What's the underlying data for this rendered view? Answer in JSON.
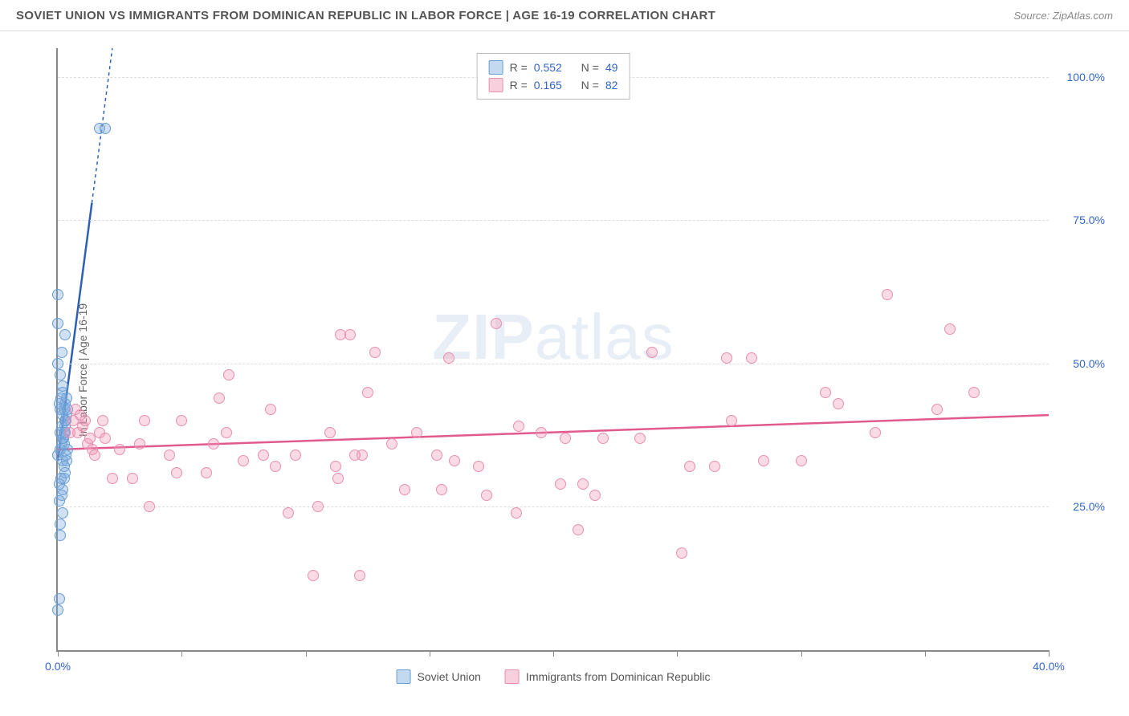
{
  "title": "SOVIET UNION VS IMMIGRANTS FROM DOMINICAN REPUBLIC IN LABOR FORCE | AGE 16-19 CORRELATION CHART",
  "source": "Source: ZipAtlas.com",
  "watermark_bold": "ZIP",
  "watermark_rest": "atlas",
  "y_axis_label": "In Labor Force | Age 16-19",
  "chart": {
    "type": "scatter",
    "xlim": [
      0,
      40
    ],
    "ylim": [
      0,
      105
    ],
    "x_tick_major_positions": [
      0,
      5,
      10,
      15,
      20,
      25,
      30,
      35,
      40
    ],
    "x_tick_labels": [
      {
        "pos": 0,
        "text": "0.0%"
      },
      {
        "pos": 40,
        "text": "40.0%"
      }
    ],
    "y_gridlines": [
      25,
      50,
      75,
      100
    ],
    "y_tick_labels": [
      {
        "pos": 25,
        "text": "25.0%"
      },
      {
        "pos": 50,
        "text": "50.0%"
      },
      {
        "pos": 75,
        "text": "75.0%"
      },
      {
        "pos": 100,
        "text": "100.0%"
      }
    ],
    "grid_color": "#dddddd",
    "axis_color": "#888888",
    "background_color": "#ffffff",
    "marker_radius": 7,
    "series": [
      {
        "name": "Soviet Union",
        "color_fill": "rgba(120,170,220,0.35)",
        "color_stroke": "#6a9dd4",
        "r_value": "0.552",
        "n_value": "49",
        "trendline": {
          "x1": 0,
          "y1": 33,
          "x2": 2.2,
          "y2": 105,
          "solid_until_y": 78,
          "stroke": "#2f5fb5",
          "stroke_width": 2.5
        },
        "points": [
          [
            0.0,
            7
          ],
          [
            0.05,
            9
          ],
          [
            0.1,
            20
          ],
          [
            0.1,
            22
          ],
          [
            0.2,
            24
          ],
          [
            0.15,
            27
          ],
          [
            0.2,
            28
          ],
          [
            0.25,
            30
          ],
          [
            0.2,
            33
          ],
          [
            0.0,
            34
          ],
          [
            0.1,
            35
          ],
          [
            0.25,
            36
          ],
          [
            0.2,
            37
          ],
          [
            0.25,
            38
          ],
          [
            0.3,
            39
          ],
          [
            0.3,
            40
          ],
          [
            0.35,
            41
          ],
          [
            0.25,
            42
          ],
          [
            0.3,
            43
          ],
          [
            0.35,
            44
          ],
          [
            0.2,
            45
          ],
          [
            0.0,
            50
          ],
          [
            0.15,
            52
          ],
          [
            0.3,
            55
          ],
          [
            0.0,
            57
          ],
          [
            0.0,
            62
          ],
          [
            1.7,
            91
          ],
          [
            1.9,
            91
          ],
          [
            0.3,
            31
          ],
          [
            0.35,
            33
          ],
          [
            0.4,
            35
          ],
          [
            0.15,
            36
          ],
          [
            0.22,
            37
          ],
          [
            0.28,
            38
          ],
          [
            0.32,
            40
          ],
          [
            0.18,
            41
          ],
          [
            0.1,
            42
          ],
          [
            0.05,
            43
          ],
          [
            0.12,
            44
          ],
          [
            0.27,
            32
          ],
          [
            0.33,
            34
          ],
          [
            0.08,
            29
          ],
          [
            0.14,
            30
          ],
          [
            0.06,
            26
          ],
          [
            0.11,
            48
          ],
          [
            0.2,
            46
          ],
          [
            0.1,
            38
          ],
          [
            0.15,
            39
          ],
          [
            0.4,
            42
          ]
        ]
      },
      {
        "name": "Immigrants from Dominican Republic",
        "color_fill": "rgba(240,150,180,0.35)",
        "color_stroke": "#e78fb0",
        "r_value": "0.165",
        "n_value": "82",
        "trendline": {
          "x1": 0,
          "y1": 35,
          "x2": 40,
          "y2": 41,
          "stroke": "#e05a8e",
          "stroke_width": 2.5
        },
        "points": [
          [
            0.6,
            40
          ],
          [
            0.7,
            42
          ],
          [
            0.8,
            38
          ],
          [
            0.9,
            41
          ],
          [
            1.0,
            39
          ],
          [
            1.2,
            36
          ],
          [
            1.3,
            37
          ],
          [
            1.4,
            35
          ],
          [
            1.5,
            34
          ],
          [
            1.7,
            38
          ],
          [
            1.8,
            40
          ],
          [
            1.9,
            37
          ],
          [
            2.2,
            30
          ],
          [
            2.5,
            35
          ],
          [
            3.0,
            30
          ],
          [
            3.3,
            36
          ],
          [
            3.5,
            40
          ],
          [
            3.7,
            25
          ],
          [
            4.5,
            34
          ],
          [
            4.8,
            31
          ],
          [
            5.0,
            40
          ],
          [
            6.0,
            31
          ],
          [
            6.3,
            36
          ],
          [
            6.5,
            44
          ],
          [
            6.8,
            38
          ],
          [
            6.9,
            48
          ],
          [
            7.5,
            33
          ],
          [
            8.3,
            34
          ],
          [
            8.6,
            42
          ],
          [
            8.8,
            32
          ],
          [
            9.3,
            24
          ],
          [
            9.6,
            34
          ],
          [
            10.3,
            13
          ],
          [
            10.5,
            25
          ],
          [
            11.0,
            38
          ],
          [
            11.2,
            32
          ],
          [
            11.3,
            30
          ],
          [
            11.4,
            55
          ],
          [
            11.8,
            55
          ],
          [
            12.0,
            34
          ],
          [
            12.2,
            13
          ],
          [
            12.3,
            34
          ],
          [
            12.5,
            45
          ],
          [
            12.8,
            52
          ],
          [
            13.5,
            36
          ],
          [
            14.0,
            28
          ],
          [
            14.5,
            38
          ],
          [
            15.3,
            34
          ],
          [
            15.5,
            28
          ],
          [
            15.8,
            51
          ],
          [
            16.0,
            33
          ],
          [
            17.0,
            32
          ],
          [
            17.3,
            27
          ],
          [
            17.7,
            57
          ],
          [
            18.5,
            24
          ],
          [
            18.6,
            39
          ],
          [
            19.5,
            38
          ],
          [
            20.3,
            29
          ],
          [
            20.5,
            37
          ],
          [
            21.0,
            21
          ],
          [
            21.2,
            29
          ],
          [
            21.7,
            27
          ],
          [
            22.0,
            37
          ],
          [
            23.5,
            37
          ],
          [
            24.0,
            52
          ],
          [
            25.2,
            17
          ],
          [
            25.5,
            32
          ],
          [
            26.5,
            32
          ],
          [
            27.0,
            51
          ],
          [
            27.2,
            40
          ],
          [
            28.0,
            51
          ],
          [
            28.5,
            33
          ],
          [
            30.0,
            33
          ],
          [
            31.0,
            45
          ],
          [
            31.5,
            43
          ],
          [
            33.0,
            38
          ],
          [
            33.5,
            62
          ],
          [
            35.5,
            42
          ],
          [
            36.0,
            56
          ],
          [
            37.0,
            45
          ],
          [
            0.5,
            38
          ],
          [
            1.1,
            40
          ]
        ]
      }
    ]
  },
  "legend_top": {
    "r_label": "R =",
    "n_label": "N ="
  },
  "legend_bottom": {
    "series1": "Soviet Union",
    "series2": "Immigrants from Dominican Republic"
  }
}
